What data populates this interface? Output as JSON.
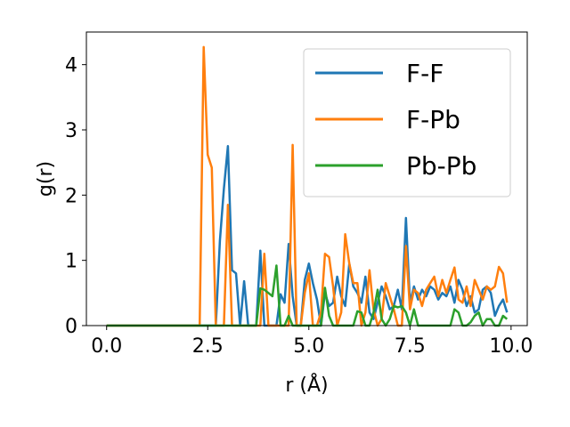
{
  "chart_data": {
    "type": "line",
    "xlabel": "r (Å)",
    "ylabel": "g(r)",
    "xlim": [
      -0.5,
      10.4
    ],
    "ylim": [
      0,
      4.5
    ],
    "xticks": [
      "0.0",
      "2.5",
      "5.0",
      "7.5",
      "10.0"
    ],
    "xtick_values": [
      0,
      2.5,
      5,
      7.5,
      10
    ],
    "yticks": [
      "0",
      "1",
      "2",
      "3",
      "4"
    ],
    "ytick_values": [
      0,
      1,
      2,
      3,
      4
    ],
    "grid": false,
    "legend_position": "top-right",
    "x": [
      0.0,
      0.1,
      0.2,
      0.3,
      0.4,
      0.5,
      0.6,
      0.7,
      0.8,
      0.9,
      1.0,
      1.1,
      1.2,
      1.3,
      1.4,
      1.5,
      1.6,
      1.7,
      1.8,
      1.9,
      2.0,
      2.1,
      2.2,
      2.3,
      2.4,
      2.5,
      2.6,
      2.7,
      2.8,
      2.9,
      3.0,
      3.1,
      3.2,
      3.3,
      3.4,
      3.5,
      3.6,
      3.7,
      3.8,
      3.9,
      4.0,
      4.1,
      4.2,
      4.3,
      4.4,
      4.5,
      4.6,
      4.7,
      4.8,
      4.9,
      5.0,
      5.1,
      5.2,
      5.3,
      5.4,
      5.5,
      5.6,
      5.7,
      5.8,
      5.9,
      6.0,
      6.1,
      6.2,
      6.3,
      6.4,
      6.5,
      6.6,
      6.7,
      6.8,
      6.9,
      7.0,
      7.1,
      7.2,
      7.3,
      7.4,
      7.5,
      7.6,
      7.7,
      7.8,
      7.9,
      8.0,
      8.1,
      8.2,
      8.3,
      8.4,
      8.5,
      8.6,
      8.7,
      8.8,
      8.9,
      9.0,
      9.1,
      9.2,
      9.3,
      9.4,
      9.5,
      9.6,
      9.7,
      9.8,
      9.9
    ],
    "series": [
      {
        "name": "F-F",
        "color": "#1f77b4",
        "values": [
          0,
          0,
          0,
          0,
          0,
          0,
          0,
          0,
          0,
          0,
          0,
          0,
          0,
          0,
          0,
          0,
          0,
          0,
          0,
          0,
          0,
          0,
          0,
          0,
          0,
          0,
          0,
          0,
          1.3,
          2.1,
          2.75,
          0.85,
          0.8,
          0,
          0.68,
          0,
          0,
          0,
          1.15,
          0,
          0,
          0,
          0,
          0.48,
          0.35,
          1.25,
          0.45,
          0,
          0,
          0.7,
          0.95,
          0.65,
          0.4,
          0,
          0.5,
          0.3,
          0.35,
          0.75,
          0.45,
          0.3,
          0.95,
          0.6,
          0.5,
          0.35,
          0.75,
          0.2,
          0.1,
          0.35,
          0.6,
          0.45,
          0.25,
          0.3,
          0.55,
          0.25,
          1.65,
          0.35,
          0.6,
          0.4,
          0.55,
          0.45,
          0.6,
          0.55,
          0.4,
          0.5,
          0.45,
          0.6,
          0.35,
          0.7,
          0.55,
          0.3,
          0.45,
          0.2,
          0.25,
          0.55,
          0.6,
          0.5,
          0.15,
          0.3,
          0.4,
          0.2
        ]
      },
      {
        "name": "F-Pb",
        "color": "#ff7f0e",
        "values": [
          0,
          0,
          0,
          0,
          0,
          0,
          0,
          0,
          0,
          0,
          0,
          0,
          0,
          0,
          0,
          0,
          0,
          0,
          0,
          0,
          0,
          0,
          0,
          0,
          4.27,
          2.62,
          2.42,
          0,
          0,
          0,
          1.85,
          0,
          0,
          0,
          0,
          0,
          0,
          0,
          0,
          1.1,
          0,
          0,
          0,
          0,
          0,
          0,
          2.77,
          0,
          0,
          0.5,
          0.8,
          0,
          0,
          0.2,
          1.1,
          1.05,
          0.6,
          0,
          0.2,
          1.4,
          0.95,
          0.65,
          0.65,
          0,
          0.2,
          0.85,
          0.25,
          0,
          0.1,
          0.65,
          0.45,
          0.25,
          0,
          0,
          1.22,
          0.25,
          0.55,
          0.5,
          0.3,
          0.55,
          0.65,
          0.75,
          0.45,
          0.7,
          0.5,
          0.7,
          0.89,
          0.4,
          0.35,
          0.6,
          0.3,
          0.7,
          0.55,
          0.4,
          0.6,
          0.55,
          0.6,
          0.9,
          0.8,
          0.35
        ]
      },
      {
        "name": "Pb-Pb",
        "color": "#2ca02c",
        "values": [
          0,
          0,
          0,
          0,
          0,
          0,
          0,
          0,
          0,
          0,
          0,
          0,
          0,
          0,
          0,
          0,
          0,
          0,
          0,
          0,
          0,
          0,
          0,
          0,
          0,
          0,
          0,
          0,
          0,
          0,
          0,
          0,
          0,
          0,
          0,
          0,
          0,
          0,
          0.57,
          0.55,
          0.5,
          0.45,
          0.92,
          0,
          0,
          0.15,
          0,
          0,
          0,
          0,
          0,
          0,
          0,
          0,
          0.58,
          0.15,
          0,
          0,
          0,
          0,
          0,
          0,
          0.22,
          0.2,
          0,
          0,
          0.2,
          0.55,
          0.1,
          0,
          0.1,
          0.3,
          0.28,
          0.3,
          0.2,
          0,
          0.25,
          0,
          0,
          0,
          0,
          0,
          0,
          0,
          0,
          0,
          0.25,
          0.2,
          0,
          0,
          0.05,
          0.15,
          0.2,
          0,
          0.1,
          0.1,
          0,
          0,
          0.15,
          0.1
        ]
      }
    ]
  }
}
